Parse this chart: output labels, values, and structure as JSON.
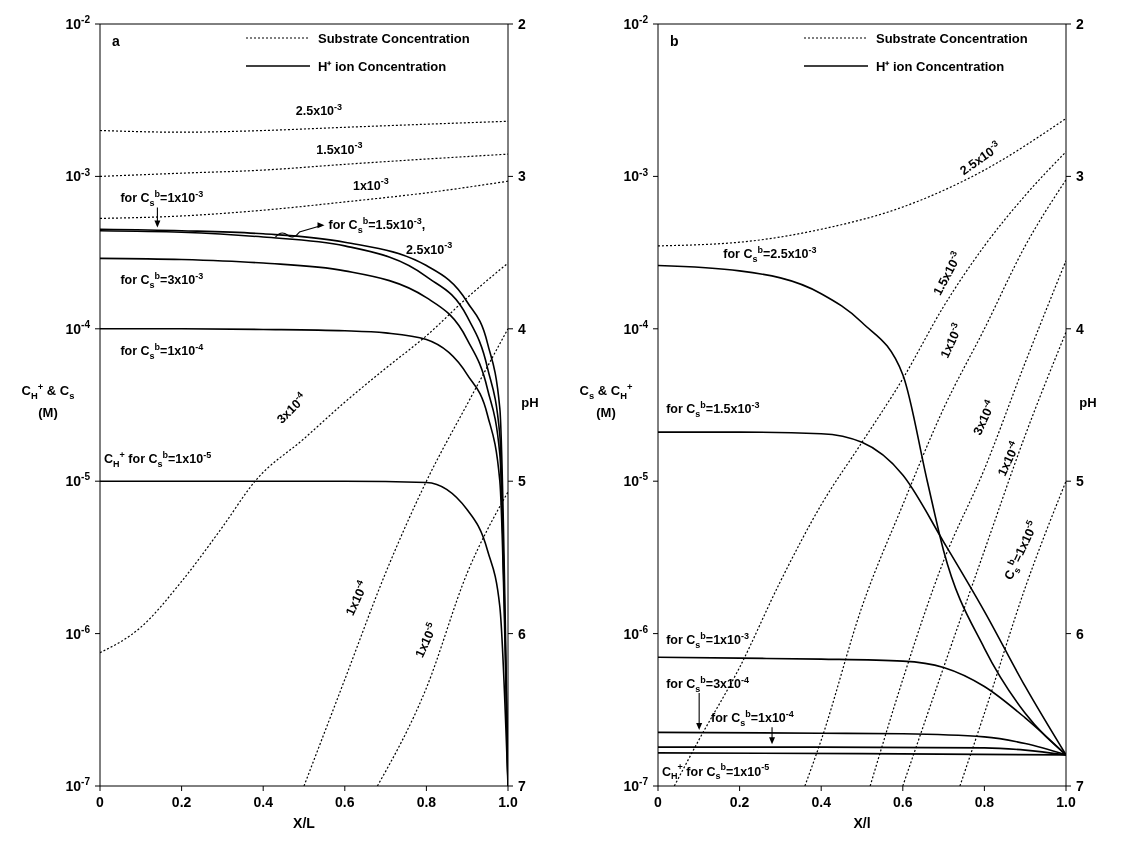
{
  "chart_data": [
    {
      "type": "line",
      "title": "a",
      "xlabel": "X/L",
      "ylabel": "C$_{H}$$^{+}$ & C$_{s}$ (M)",
      "y2label": "pH",
      "log": "y",
      "legend": "top right",
      "xlim": [
        0,
        1
      ],
      "xticks": [
        0,
        0.2,
        0.4,
        0.6,
        0.8,
        {
          "value": 1,
          "label": "1.0"
        }
      ],
      "ylim": [
        1e-07,
        0.01
      ],
      "yticks": [
        {
          "value": 1e-07,
          "label": "10$^{-7}$"
        },
        {
          "value": 1e-06,
          "label": "10$^{-6}$"
        },
        {
          "value": 1e-05,
          "label": "10$^{-5}$"
        },
        {
          "value": 0.0001,
          "label": "10$^{-4}$"
        },
        {
          "value": 0.001,
          "label": "10$^{-3}$"
        },
        {
          "value": 0.01,
          "label": "10$^{-2}$"
        }
      ],
      "y2lim": [
        7,
        2
      ],
      "y2ticks": [
        7,
        6,
        5,
        4,
        3,
        2
      ],
      "series": [
        {
          "name": "Substrate Concentration",
          "color": "#000000",
          "line_style": "dotted",
          "x": [
            0,
            0.2,
            0.4,
            0.6,
            0.8,
            1.0
          ],
          "values": [
            0.002,
            0.00195,
            0.002,
            0.0021,
            0.0022,
            0.0023
          ]
        },
        {
          "color": "#000000",
          "line_style": "dotted",
          "x": [
            0,
            0.2,
            0.4,
            0.6,
            0.8,
            1.0
          ],
          "values": [
            0.001,
            0.00105,
            0.0011,
            0.0012,
            0.0013,
            0.0014
          ]
        },
        {
          "color": "#000000",
          "line_style": "dotted",
          "x": [
            0,
            0.2,
            0.4,
            0.6,
            0.8,
            1.0
          ],
          "values": [
            0.00053,
            0.00055,
            0.0006,
            0.00068,
            0.00078,
            0.00093
          ]
        },
        {
          "color": "#000000",
          "line_style": "dotted",
          "x": [
            0,
            0.1,
            0.2,
            0.3,
            0.38,
            0.5,
            0.6,
            0.7,
            0.8,
            0.9,
            1.0
          ],
          "values": [
            7.5e-07,
            1.1e-06,
            2.2e-06,
            5e-06,
            1e-05,
            1.9e-05,
            3.3e-05,
            5.5e-05,
            9e-05,
            0.00016,
            0.00027
          ]
        },
        {
          "color": "#000000",
          "line_style": "dotted",
          "x": [
            0.5,
            0.6,
            0.7,
            0.8,
            0.9,
            1.0
          ],
          "values": [
            1e-07,
            5e-07,
            2.5e-06,
            1e-05,
            3.2e-05,
            0.0001
          ]
        },
        {
          "color": "#000000",
          "line_style": "dotted",
          "x": [
            0.68,
            0.8,
            0.9,
            1.0
          ],
          "values": [
            1e-07,
            4.4e-07,
            2.5e-06,
            8.5e-06
          ]
        },
        {
          "name": "H⁺ ion Concentration",
          "color": "#000000",
          "line_style": "solid",
          "x": [
            0,
            0.2,
            0.4,
            0.6,
            0.8,
            0.9,
            0.95,
            0.98,
            1.0
          ],
          "values": [
            0.00045,
            0.00044,
            0.00042,
            0.00037,
            0.00026,
            0.00015,
            8e-05,
            3e-05,
            1e-07
          ]
        },
        {
          "color": "#000000",
          "line_style": "solid",
          "x": [
            0,
            0.2,
            0.4,
            0.6,
            0.8,
            0.9,
            0.95,
            0.98,
            0.99
          ],
          "values": [
            0.00044,
            0.00043,
            0.0004,
            0.00035,
            0.00022,
            0.00012,
            5.5e-05,
            2e-05,
            2e-06
          ]
        },
        {
          "color": "#000000",
          "line_style": "solid",
          "x": [
            0,
            0.2,
            0.4,
            0.6,
            0.8,
            0.9,
            0.95,
            0.98,
            1.0
          ],
          "values": [
            0.00029,
            0.000285,
            0.00027,
            0.00024,
            0.00016,
            8.5e-05,
            4e-05,
            1.5e-05,
            1e-07
          ]
        },
        {
          "color": "#000000",
          "line_style": "solid",
          "x": [
            0,
            0.2,
            0.4,
            0.6,
            0.7,
            0.8,
            0.9,
            0.95,
            0.98,
            1.0
          ],
          "values": [
            0.0001,
            0.0001,
            9.9e-05,
            9.7e-05,
            9.4e-05,
            8.5e-05,
            5e-05,
            2.7e-05,
            1e-05,
            1e-07
          ]
        },
        {
          "color": "#000000",
          "line_style": "solid",
          "x": [
            0,
            0.2,
            0.4,
            0.6,
            0.8,
            0.9,
            0.95,
            0.98,
            1.0
          ],
          "values": [
            1e-05,
            1e-05,
            1e-05,
            1e-05,
            9.8e-06,
            6.5e-06,
            3.5e-06,
            1.5e-06,
            1e-07
          ]
        }
      ],
      "annotations": [
        "2.5x10$^{-3}$",
        "1.5x10$^{-3}$",
        "1x10$^{-3}$",
        "for C$_{s}$$^{b}$=1x10$^{-3}$",
        {
          "text": "for C$_{s}$$^{b}$=1.5x10$^{-3}$,",
          "x": 0.43,
          "y": 0.0004
        },
        "2.5x10$^{-3}$",
        "for C$_{s}$$^{b}$=3x10$^{-3}$",
        "for C$_{s}$$^{b}$=1x10$^{-4}$",
        "3x10$^{-4}$",
        "C$_{H}$$^{+}$ for C$_{s}$$^{b}$=1x10$^{-5}$",
        "1x10$^{-4}$",
        "1x10$^{-5}$"
      ]
    },
    {
      "type": "line",
      "title": "b",
      "xlabel": "X/l",
      "ylabel": "C$_{s}$ & C$_{H}$$^{+}$ (M)",
      "y2label": "pH",
      "log": "y",
      "legend": "top right",
      "xlim": [
        0,
        1
      ],
      "xticks": [
        0,
        0.2,
        0.4,
        0.6,
        0.8,
        {
          "value": 1,
          "label": "1.0"
        }
      ],
      "ylim": [
        1e-07,
        0.01
      ],
      "yticks": [
        {
          "value": 1e-07,
          "label": "10$^{-7}$"
        },
        {
          "value": 1e-06,
          "label": "10$^{-6}$"
        },
        {
          "value": 1e-05,
          "label": "10$^{-5}$"
        },
        {
          "value": 0.0001,
          "label": "10$^{-4}$"
        },
        {
          "value": 0.001,
          "label": "10$^{-3}$"
        },
        {
          "value": 0.01,
          "label": "10$^{-2}$"
        }
      ],
      "y2lim": [
        7,
        2
      ],
      "y2ticks": [
        7,
        6,
        5,
        4,
        3,
        2
      ],
      "series": [
        {
          "name": "Substrate Concentration",
          "color": "#000000",
          "line_style": "dotted",
          "x": [
            0,
            0.2,
            0.4,
            0.6,
            0.8,
            1.0
          ],
          "values": [
            0.00035,
            0.00037,
            0.00045,
            0.00063,
            0.0011,
            0.0024
          ]
        },
        {
          "color": "#000000",
          "line_style": "dotted",
          "x": [
            0.04,
            0.1,
            0.2,
            0.3,
            0.4,
            0.5,
            0.6,
            0.7,
            0.8,
            0.9,
            1.0
          ],
          "values": [
            1e-07,
            2e-07,
            6e-07,
            2.2e-06,
            7e-06,
            1.8e-05,
            4.7e-05,
            0.00014,
            0.00035,
            0.00075,
            0.00145
          ]
        },
        {
          "color": "#000000",
          "line_style": "dotted",
          "x": [
            0.36,
            0.4,
            0.5,
            0.6,
            0.7,
            0.8,
            0.9,
            1.0
          ],
          "values": [
            1e-07,
            2e-07,
            1.5e-06,
            7e-06,
            3e-05,
            0.0001,
            0.00035,
            0.00095
          ]
        },
        {
          "color": "#000000",
          "line_style": "dotted",
          "x": [
            0.52,
            0.6,
            0.7,
            0.8,
            0.9,
            1.0
          ],
          "values": [
            1e-07,
            5e-07,
            3e-06,
            1.2e-05,
            6e-05,
            0.00028
          ]
        },
        {
          "color": "#000000",
          "line_style": "dotted",
          "x": [
            0.6,
            0.7,
            0.8,
            0.9,
            1.0
          ],
          "values": [
            1e-07,
            6e-07,
            3.5e-06,
            2e-05,
            9.5e-05
          ]
        },
        {
          "color": "#000000",
          "line_style": "dotted",
          "x": [
            0.74,
            0.8,
            0.9,
            1.0
          ],
          "values": [
            1e-07,
            3e-07,
            2e-06,
            1e-05
          ]
        },
        {
          "name": "H⁺ ion Concentration",
          "color": "#000000",
          "line_style": "solid",
          "x": [
            0,
            0.2,
            0.4,
            0.5,
            0.6,
            0.66,
            0.7,
            0.8,
            0.9,
            1.0
          ],
          "values": [
            0.00026,
            0.00024,
            0.00017,
            0.00011,
            5e-05,
            1e-05,
            3.5e-06,
            8e-07,
            3e-07,
            1.6e-07
          ]
        },
        {
          "color": "#000000",
          "line_style": "solid",
          "x": [
            0,
            0.2,
            0.4,
            0.5,
            0.6,
            0.7,
            0.8,
            0.9,
            1.0
          ],
          "values": [
            2.1e-05,
            2.1e-05,
            2.05e-05,
            1.8e-05,
            1.1e-05,
            4e-06,
            1.4e-06,
            4.5e-07,
            1.6e-07
          ]
        },
        {
          "color": "#000000",
          "line_style": "solid",
          "x": [
            0,
            0.2,
            0.4,
            0.6,
            0.7,
            0.8,
            0.9,
            1.0
          ],
          "values": [
            7e-07,
            6.9e-07,
            6.8e-07,
            6.6e-07,
            6e-07,
            4.5e-07,
            2.8e-07,
            1.6e-07
          ]
        },
        {
          "color": "#000000",
          "line_style": "solid",
          "x": [
            0,
            0.4,
            0.6,
            0.8,
            0.9,
            1.0
          ],
          "values": [
            2.25e-07,
            2.22e-07,
            2.2e-07,
            2.1e-07,
            1.9e-07,
            1.6e-07
          ]
        },
        {
          "color": "#000000",
          "line_style": "solid",
          "x": [
            0,
            0.4,
            0.8,
            0.9,
            1.0
          ],
          "values": [
            1.8e-07,
            1.8e-07,
            1.78e-07,
            1.72e-07,
            1.6e-07
          ]
        },
        {
          "color": "#000000",
          "line_style": "solid",
          "x": [
            0,
            0.5,
            1.0
          ],
          "values": [
            1.65e-07,
            1.63e-07,
            1.6e-07
          ]
        }
      ],
      "annotations": [
        "2.5x10$^{-3}$",
        "for C$_{s}$$^{b}$=2.5x10$^{-3}$",
        "1.5x10$^{-3}$",
        "1x10$^{-3}$",
        "3x10$^{-4}$",
        "1x10$^{-4}$",
        "C$_{s}$$^{b}$=1x10$^{-5}$",
        "for C$_{s}$$^{b}$=1.5x10$^{-3}$",
        "for C$_{s}$$^{b}$=1x10$^{-3}$",
        "for C$_{s}$$^{b}$=3x10$^{-4}$",
        "for C$_{s}$$^{b}$=1x10$^{-4}$",
        "C$_{H}$$^{+}$ for C$_{s}$$^{b}$=1x10$^{-5}$"
      ]
    }
  ]
}
